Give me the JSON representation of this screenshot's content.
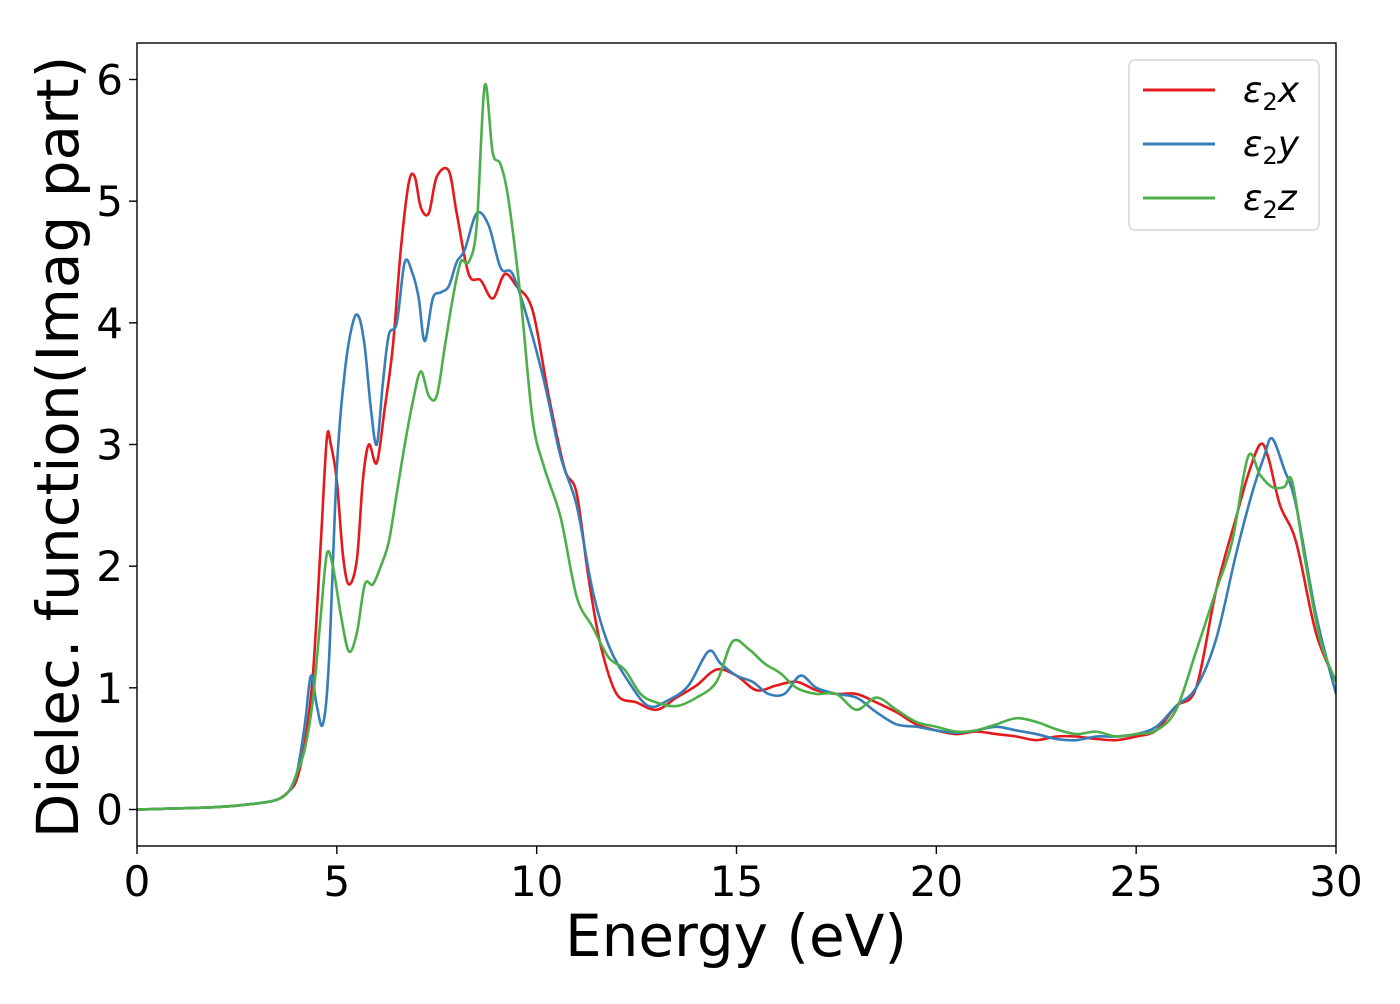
{
  "chart_data": {
    "type": "line",
    "xlabel": "Energy (eV)",
    "ylabel": "Dielec. function(Imag part)",
    "xlim": [
      0,
      30
    ],
    "ylim": [
      -0.3,
      6.3
    ],
    "xticks": [
      0,
      5,
      10,
      15,
      20,
      25,
      30
    ],
    "yticks": [
      0,
      1,
      2,
      3,
      4,
      5,
      6
    ],
    "grid": false,
    "legend_position": "top-right",
    "series": [
      {
        "name": "ε₂x",
        "legend_main": "ε",
        "legend_sub": "2",
        "legend_tail": "x",
        "color": "#e41a1c",
        "x": [
          0,
          2,
          3,
          3.5,
          3.8,
          4.0,
          4.2,
          4.4,
          4.6,
          4.75,
          4.85,
          5.0,
          5.15,
          5.3,
          5.5,
          5.65,
          5.8,
          6.0,
          6.2,
          6.4,
          6.6,
          6.8,
          6.95,
          7.1,
          7.3,
          7.5,
          7.8,
          8.0,
          8.3,
          8.6,
          8.9,
          9.2,
          9.5,
          9.9,
          10.3,
          10.7,
          11.0,
          11.3,
          11.6,
          12.0,
          12.5,
          13.0,
          13.5,
          14.0,
          14.5,
          15.0,
          15.5,
          16.0,
          16.5,
          17.0,
          17.5,
          18.0,
          18.5,
          19.0,
          19.5,
          20.0,
          20.5,
          21.0,
          21.5,
          22.0,
          22.5,
          23.0,
          23.5,
          24.0,
          24.5,
          25.0,
          25.5,
          26.0,
          26.5,
          27.0,
          27.5,
          27.8,
          28.1,
          28.3,
          28.6,
          29.0,
          29.5,
          30.0
        ],
        "y": [
          0,
          0.02,
          0.05,
          0.08,
          0.15,
          0.25,
          0.55,
          1.1,
          2.2,
          3.05,
          3.0,
          2.7,
          2.1,
          1.85,
          2.05,
          2.7,
          3.0,
          2.85,
          3.3,
          3.8,
          4.6,
          5.15,
          5.2,
          4.95,
          4.9,
          5.2,
          5.25,
          4.9,
          4.4,
          4.35,
          4.2,
          4.4,
          4.3,
          4.1,
          3.4,
          2.8,
          2.6,
          1.9,
          1.35,
          0.95,
          0.88,
          0.82,
          0.92,
          1.02,
          1.15,
          1.1,
          0.98,
          1.02,
          1.05,
          0.98,
          0.95,
          0.95,
          0.88,
          0.8,
          0.7,
          0.65,
          0.62,
          0.64,
          0.62,
          0.6,
          0.57,
          0.6,
          0.6,
          0.58,
          0.57,
          0.6,
          0.65,
          0.85,
          1.0,
          1.8,
          2.4,
          2.75,
          3.0,
          2.9,
          2.5,
          2.2,
          1.45,
          1.05
        ]
      },
      {
        "name": "ε₂y",
        "legend_main": "ε",
        "legend_sub": "2",
        "legend_tail": "y",
        "color": "#377eb8",
        "x": [
          0,
          2,
          3,
          3.5,
          3.8,
          4.0,
          4.2,
          4.35,
          4.5,
          4.65,
          4.8,
          5.0,
          5.2,
          5.4,
          5.55,
          5.7,
          5.85,
          6.0,
          6.15,
          6.3,
          6.5,
          6.7,
          6.9,
          7.05,
          7.2,
          7.4,
          7.6,
          7.8,
          8.0,
          8.2,
          8.5,
          8.8,
          9.1,
          9.4,
          9.8,
          10.2,
          10.6,
          11.0,
          11.4,
          11.8,
          12.3,
          12.8,
          13.3,
          13.8,
          14.3,
          14.6,
          15.0,
          15.4,
          15.8,
          16.2,
          16.6,
          17.0,
          17.5,
          18.0,
          18.5,
          19.0,
          19.5,
          20.0,
          20.5,
          21.0,
          21.5,
          22.0,
          22.5,
          23.0,
          23.5,
          24.0,
          24.5,
          25.0,
          25.5,
          26.0,
          26.5,
          27.0,
          27.5,
          27.9,
          28.2,
          28.4,
          28.7,
          29.0,
          29.5,
          30.0
        ],
        "y": [
          0,
          0.02,
          0.05,
          0.08,
          0.15,
          0.3,
          0.7,
          1.1,
          0.85,
          0.7,
          1.2,
          2.8,
          3.6,
          4.0,
          4.05,
          3.8,
          3.3,
          3.0,
          3.5,
          3.9,
          4.0,
          4.5,
          4.4,
          4.2,
          3.85,
          4.2,
          4.25,
          4.3,
          4.5,
          4.6,
          4.9,
          4.8,
          4.45,
          4.4,
          4.0,
          3.5,
          2.9,
          2.5,
          1.8,
          1.35,
          1.05,
          0.85,
          0.9,
          1.02,
          1.3,
          1.2,
          1.1,
          1.05,
          0.95,
          0.95,
          1.1,
          1.0,
          0.95,
          0.92,
          0.8,
          0.7,
          0.68,
          0.65,
          0.63,
          0.65,
          0.68,
          0.65,
          0.62,
          0.58,
          0.57,
          0.6,
          0.6,
          0.62,
          0.68,
          0.85,
          1.0,
          1.4,
          2.1,
          2.6,
          2.9,
          3.05,
          2.8,
          2.5,
          1.6,
          0.95
        ]
      },
      {
        "name": "ε₂z",
        "legend_main": "ε",
        "legend_sub": "2",
        "legend_tail": "z",
        "color": "#4daf4a",
        "x": [
          0,
          2,
          3,
          3.5,
          3.8,
          4.0,
          4.2,
          4.4,
          4.6,
          4.75,
          4.9,
          5.1,
          5.3,
          5.5,
          5.7,
          5.9,
          6.1,
          6.3,
          6.5,
          6.7,
          6.9,
          7.1,
          7.3,
          7.5,
          7.7,
          7.9,
          8.1,
          8.3,
          8.5,
          8.7,
          8.9,
          9.1,
          9.3,
          9.6,
          9.9,
          10.2,
          10.6,
          11.0,
          11.4,
          11.8,
          12.2,
          12.6,
          13.0,
          13.5,
          14.0,
          14.5,
          14.9,
          15.3,
          15.7,
          16.1,
          16.5,
          17.0,
          17.5,
          18.0,
          18.5,
          19.0,
          19.5,
          20.0,
          20.5,
          21.0,
          21.5,
          22.0,
          22.5,
          23.0,
          23.5,
          24.0,
          24.5,
          25.0,
          25.5,
          26.0,
          26.5,
          27.0,
          27.4,
          27.8,
          28.1,
          28.4,
          28.7,
          28.9,
          29.2,
          29.6,
          30.0
        ],
        "y": [
          0,
          0.02,
          0.05,
          0.08,
          0.15,
          0.3,
          0.5,
          0.9,
          1.6,
          2.1,
          2.0,
          1.6,
          1.3,
          1.45,
          1.85,
          1.85,
          2.0,
          2.2,
          2.6,
          3.0,
          3.35,
          3.6,
          3.4,
          3.4,
          3.8,
          4.2,
          4.5,
          4.5,
          4.8,
          5.95,
          5.4,
          5.3,
          5.0,
          4.2,
          3.2,
          2.8,
          2.4,
          1.75,
          1.5,
          1.25,
          1.15,
          0.95,
          0.88,
          0.85,
          0.92,
          1.05,
          1.38,
          1.32,
          1.2,
          1.12,
          1.0,
          0.95,
          0.95,
          0.82,
          0.92,
          0.82,
          0.72,
          0.68,
          0.64,
          0.65,
          0.7,
          0.75,
          0.72,
          0.66,
          0.62,
          0.64,
          0.6,
          0.62,
          0.65,
          0.82,
          1.3,
          1.8,
          2.2,
          2.9,
          2.75,
          2.65,
          2.65,
          2.7,
          2.1,
          1.4,
          1.05
        ]
      }
    ]
  }
}
